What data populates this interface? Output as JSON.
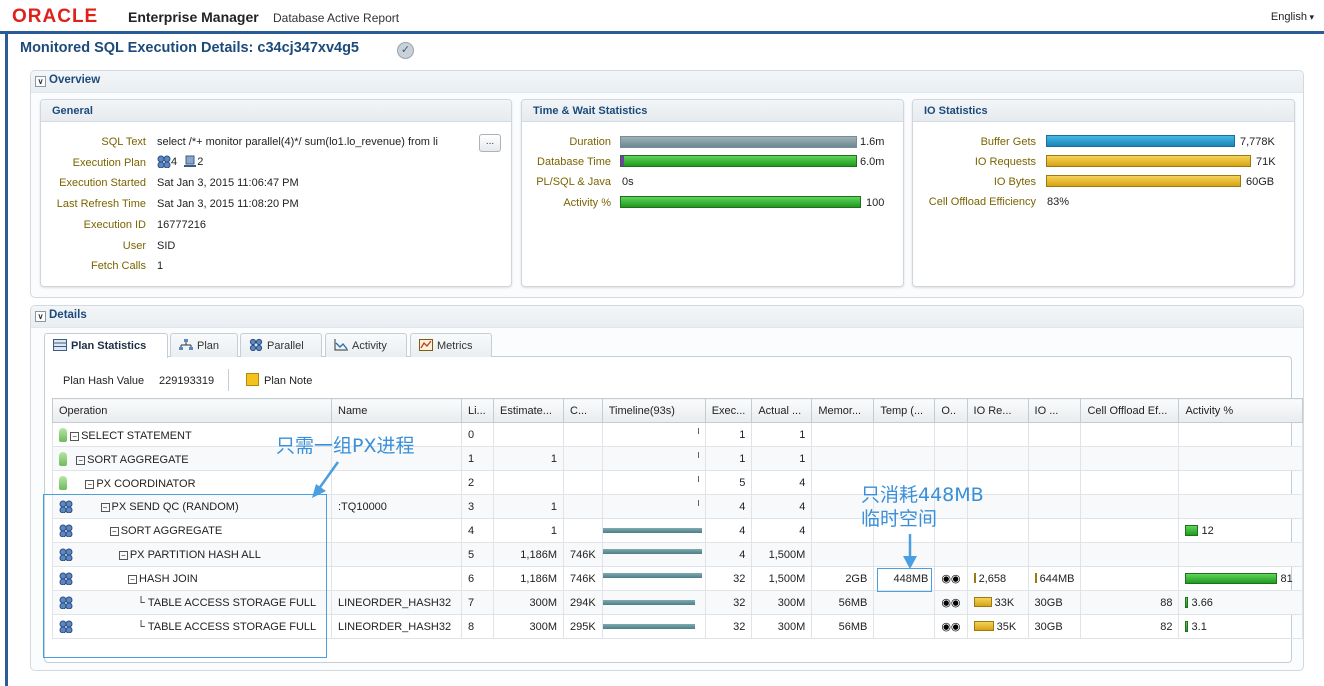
{
  "header": {
    "logo": "ORACLE",
    "product": "Enterprise Manager",
    "subtitle": "Database Active Report",
    "language": "English"
  },
  "page_title": "Monitored SQL Execution Details: c34cj347xv4g5",
  "overview": {
    "label": "Overview",
    "general": {
      "title": "General",
      "sql_text_label": "SQL Text",
      "sql_text": "select /*+ monitor parallel(4)*/ sum(lo1.lo_revenue) from li",
      "more_label": "...",
      "exec_plan_label": "Execution Plan",
      "exec_plan_parallel": "4",
      "exec_plan_instances": "2",
      "exec_started_label": "Execution Started",
      "exec_started": "Sat Jan 3, 2015 11:06:47 PM",
      "last_refresh_label": "Last Refresh Time",
      "last_refresh": "Sat Jan 3, 2015 11:08:20 PM",
      "exec_id_label": "Execution ID",
      "exec_id": "16777216",
      "user_label": "User",
      "user": "SID",
      "fetch_calls_label": "Fetch Calls",
      "fetch_calls": "1"
    },
    "time_wait": {
      "title": "Time & Wait Statistics",
      "duration_label": "Duration",
      "duration": "1.6m",
      "db_time_label": "Database Time",
      "db_time": "6.0m",
      "plsql_label": "PL/SQL & Java",
      "plsql": "0s",
      "activity_label": "Activity %",
      "activity": "100"
    },
    "io": {
      "title": "IO Statistics",
      "buffer_gets_label": "Buffer Gets",
      "buffer_gets": "7,778K",
      "io_requests_label": "IO Requests",
      "io_requests": "71K",
      "io_bytes_label": "IO Bytes",
      "io_bytes": "60GB",
      "cell_offload_label": "Cell Offload Efficiency",
      "cell_offload": "83%"
    }
  },
  "details": {
    "label": "Details",
    "tabs": [
      "Plan Statistics",
      "Plan",
      "Parallel",
      "Activity",
      "Metrics"
    ],
    "plan_hash_label": "Plan Hash Value",
    "plan_hash": "229193319",
    "plan_note": "Plan Note",
    "columns": [
      "Operation",
      "Name",
      "Li...",
      "Estimate...",
      "C...",
      "Timeline(93s)",
      "Exec...",
      "Actual ...",
      "Memor...",
      "Temp (...",
      "O..",
      "IO Re...",
      "IO ...",
      "Cell Offload Ef...",
      "Activity %"
    ],
    "rows": [
      {
        "op": "SELECT STATEMENT",
        "name": "",
        "line": "0",
        "est": "",
        "cost": "",
        "exec": "1",
        "actual": "1",
        "mem": "",
        "temp": "",
        "io_req": "",
        "io_bytes": "",
        "cell": "",
        "act": ""
      },
      {
        "op": "SORT AGGREGATE",
        "name": "",
        "line": "1",
        "est": "1",
        "cost": "",
        "exec": "1",
        "actual": "1",
        "mem": "",
        "temp": "",
        "io_req": "",
        "io_bytes": "",
        "cell": "",
        "act": ""
      },
      {
        "op": "PX COORDINATOR",
        "name": "",
        "line": "2",
        "est": "",
        "cost": "",
        "exec": "5",
        "actual": "4",
        "mem": "",
        "temp": "",
        "io_req": "",
        "io_bytes": "",
        "cell": "",
        "act": ""
      },
      {
        "op": "PX SEND QC (RANDOM)",
        "name": ":TQ10000",
        "line": "3",
        "est": "1",
        "cost": "",
        "exec": "4",
        "actual": "4",
        "mem": "",
        "temp": "",
        "io_req": "",
        "io_bytes": "",
        "cell": "",
        "act": ""
      },
      {
        "op": "SORT AGGREGATE",
        "name": "",
        "line": "4",
        "est": "1",
        "cost": "",
        "exec": "4",
        "actual": "4",
        "mem": "",
        "temp": "",
        "io_req": "",
        "io_bytes": "",
        "cell": "",
        "act": "12"
      },
      {
        "op": "PX PARTITION HASH ALL",
        "name": "",
        "line": "5",
        "est": "1,186M",
        "cost": "746K",
        "exec": "4",
        "actual": "1,500M",
        "mem": "",
        "temp": "",
        "io_req": "",
        "io_bytes": "",
        "cell": "",
        "act": ""
      },
      {
        "op": "HASH JOIN",
        "name": "",
        "line": "6",
        "est": "1,186M",
        "cost": "746K",
        "exec": "32",
        "actual": "1,500M",
        "mem": "2GB",
        "temp": "448MB",
        "io_req": "2,658",
        "io_bytes": "644MB",
        "cell": "",
        "act": "81"
      },
      {
        "op": "TABLE ACCESS STORAGE FULL",
        "name": "LINEORDER_HASH32",
        "line": "7",
        "est": "300M",
        "cost": "294K",
        "exec": "32",
        "actual": "300M",
        "mem": "56MB",
        "temp": "",
        "io_req": "33K",
        "io_bytes": "30GB",
        "cell": "88",
        "act": "3.66"
      },
      {
        "op": "TABLE ACCESS STORAGE FULL",
        "name": "LINEORDER_HASH32",
        "line": "8",
        "est": "300M",
        "cost": "295K",
        "exec": "32",
        "actual": "300M",
        "mem": "56MB",
        "temp": "",
        "io_req": "35K",
        "io_bytes": "30GB",
        "cell": "82",
        "act": "3.1"
      }
    ]
  },
  "annotations": {
    "px_note": "只需一组PX进程",
    "temp_note_1": "只消耗448MB",
    "temp_note_2": "临时空间"
  }
}
